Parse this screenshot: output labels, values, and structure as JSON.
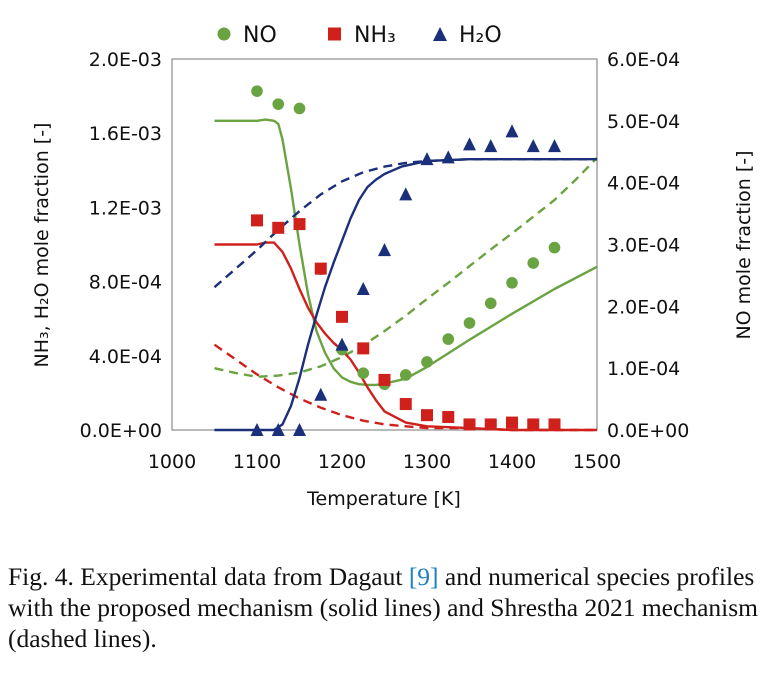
{
  "chart_data": {
    "type": "scatter",
    "xlabel": "Temperature [K]",
    "ylabel_left": "NH₃, H₂O mole fraction [-]",
    "ylabel_right": "NO mole fraction [-]",
    "xlim": [
      1000,
      1500
    ],
    "ylim_left": [
      0,
      0.002
    ],
    "ylim_right": [
      0,
      0.0006
    ],
    "x_ticks": [
      "1000",
      "1100",
      "1200",
      "1300",
      "1400",
      "1500"
    ],
    "y_left_ticks": [
      "0.0E+00",
      "4.0E-04",
      "8.0E-04",
      "1.2E-03",
      "1.6E-03",
      "2.0E-03"
    ],
    "y_right_ticks": [
      "0.0E+00",
      "1.0E-04",
      "2.0E-04",
      "3.0E-04",
      "4.0E-04",
      "5.0E-04",
      "6.0E-04"
    ],
    "grid": false,
    "legend_position": "top",
    "legend": [
      {
        "label": "NO",
        "marker": "circle",
        "color": "#6aa341"
      },
      {
        "label": "NH₃",
        "marker": "square",
        "color": "#d0201b"
      },
      {
        "label": "H₂O",
        "marker": "triangle",
        "color": "#1b2f7a"
      }
    ],
    "series": [
      {
        "name": "NO",
        "axis": "right",
        "kind": "points",
        "color": "#6aa341",
        "x": [
          1100,
          1125,
          1150,
          1175,
          1200,
          1225,
          1250,
          1275,
          1300,
          1325,
          1350,
          1375,
          1400,
          1425,
          1450
        ],
        "y": [
          0.000548,
          0.000527,
          0.00052,
          0.00026,
          0.00013,
          9.2e-05,
          7.4e-05,
          8.9e-05,
          0.00011,
          0.000147,
          0.000173,
          0.000205,
          0.000238,
          0.00027,
          0.000295
        ]
      },
      {
        "name": "NH₃",
        "axis": "left",
        "kind": "points",
        "color": "#d0201b",
        "x": [
          1100,
          1125,
          1150,
          1175,
          1200,
          1225,
          1250,
          1275,
          1300,
          1325,
          1350,
          1375,
          1400,
          1425,
          1450
        ],
        "y": [
          0.00113,
          0.00109,
          0.00111,
          0.00087,
          0.00061,
          0.00044,
          0.00027,
          0.00014,
          8e-05,
          7e-05,
          3e-05,
          3e-05,
          4e-05,
          3e-05,
          3e-05
        ]
      },
      {
        "name": "H₂O",
        "axis": "left",
        "kind": "points",
        "color": "#1b2f7a",
        "x": [
          1100,
          1125,
          1150,
          1175,
          1200,
          1225,
          1250,
          1275,
          1300,
          1325,
          1350,
          1375,
          1400,
          1425,
          1450
        ],
        "y": [
          0.0,
          0.0,
          0.0,
          0.00019,
          0.00046,
          0.00076,
          0.00097,
          0.00127,
          0.00146,
          0.00147,
          0.00154,
          0.00153,
          0.00161,
          0.00153,
          0.00153
        ]
      },
      {
        "axis": "right",
        "kind": "line",
        "style": "solid",
        "color": "#6aa341",
        "x": [
          1050,
          1080,
          1100,
          1110,
          1120,
          1125,
          1130,
          1140,
          1150,
          1160,
          1170,
          1180,
          1190,
          1200,
          1210,
          1220,
          1230,
          1240,
          1250,
          1275,
          1300,
          1350,
          1400,
          1450,
          1500
        ],
        "y": [
          0.0005,
          0.0005,
          0.0005,
          0.000502,
          0.0005,
          0.000495,
          0.00047,
          0.00039,
          0.0003,
          0.00022,
          0.00016,
          0.000125,
          0.0001,
          8.5e-05,
          7.8e-05,
          7.4e-05,
          7.3e-05,
          7.3e-05,
          7.5e-05,
          8.3e-05,
          0.000102,
          0.000146,
          0.000188,
          0.000228,
          0.000264
        ]
      },
      {
        "axis": "right",
        "kind": "line",
        "style": "dashed",
        "color": "#6aa341",
        "x": [
          1050,
          1075,
          1100,
          1125,
          1150,
          1175,
          1200,
          1225,
          1250,
          1275,
          1300,
          1325,
          1350,
          1375,
          1400,
          1425,
          1450,
          1475,
          1500
        ],
        "y": [
          0.0001,
          9.2e-05,
          8.6e-05,
          8.8e-05,
          9.3e-05,
          0.000103,
          0.000118,
          0.000137,
          0.00016,
          0.000185,
          0.000212,
          0.000238,
          0.000265,
          0.000292,
          0.000318,
          0.000345,
          0.000372,
          0.000405,
          0.00044
        ]
      },
      {
        "axis": "left",
        "kind": "line",
        "style": "solid",
        "color": "#d0201b",
        "x": [
          1050,
          1080,
          1100,
          1110,
          1120,
          1130,
          1140,
          1150,
          1160,
          1170,
          1180,
          1190,
          1200,
          1210,
          1220,
          1230,
          1240,
          1250,
          1275,
          1300,
          1350,
          1400,
          1450,
          1500
        ],
        "y": [
          0.001,
          0.001,
          0.001,
          0.00101,
          0.00101,
          0.00096,
          0.00087,
          0.00076,
          0.00066,
          0.00058,
          0.00052,
          0.00047,
          0.00043,
          0.00038,
          0.00031,
          0.00023,
          0.00016,
          0.0001,
          4e-05,
          2e-05,
          1e-05,
          0.0,
          0.0,
          0.0
        ]
      },
      {
        "axis": "left",
        "kind": "line",
        "style": "dashed",
        "color": "#d0201b",
        "x": [
          1050,
          1075,
          1100,
          1125,
          1150,
          1175,
          1200,
          1225,
          1250,
          1275,
          1300,
          1350,
          1400,
          1450,
          1500
        ],
        "y": [
          0.00046,
          0.00038,
          0.0003,
          0.00023,
          0.00017,
          0.00012,
          8e-05,
          5e-05,
          3e-05,
          2e-05,
          1e-05,
          1e-05,
          0.0,
          0.0,
          0.0
        ]
      },
      {
        "axis": "left",
        "kind": "line",
        "style": "solid",
        "color": "#1b2f7a",
        "x": [
          1050,
          1100,
          1120,
          1130,
          1140,
          1150,
          1160,
          1170,
          1180,
          1190,
          1200,
          1210,
          1220,
          1230,
          1240,
          1250,
          1260,
          1270,
          1280,
          1300,
          1350,
          1400,
          1450,
          1500
        ],
        "y": [
          0.0,
          0.0,
          0.0,
          3e-05,
          0.00013,
          0.00028,
          0.00046,
          0.00062,
          0.00077,
          0.0009,
          0.00102,
          0.00114,
          0.00124,
          0.00131,
          0.00135,
          0.00138,
          0.0014,
          0.00142,
          0.00143,
          0.00145,
          0.00146,
          0.00146,
          0.00146,
          0.00146
        ]
      },
      {
        "axis": "left",
        "kind": "line",
        "style": "dashed",
        "color": "#1b2f7a",
        "x": [
          1050,
          1075,
          1100,
          1125,
          1150,
          1175,
          1200,
          1225,
          1250,
          1275,
          1300,
          1350,
          1400,
          1450,
          1500
        ],
        "y": [
          0.00077,
          0.00087,
          0.00097,
          0.00108,
          0.00118,
          0.00127,
          0.00134,
          0.00139,
          0.00142,
          0.00144,
          0.00145,
          0.00146,
          0.00146,
          0.00146,
          0.00146
        ]
      }
    ]
  },
  "caption": {
    "prefix": "Fig. 4.  Experimental data from Dagaut ",
    "ref": "[9]",
    "suffix": " and numerical species profiles with the proposed mechanism (solid lines) and Shrestha 2021 mechanism (dashed lines)."
  }
}
